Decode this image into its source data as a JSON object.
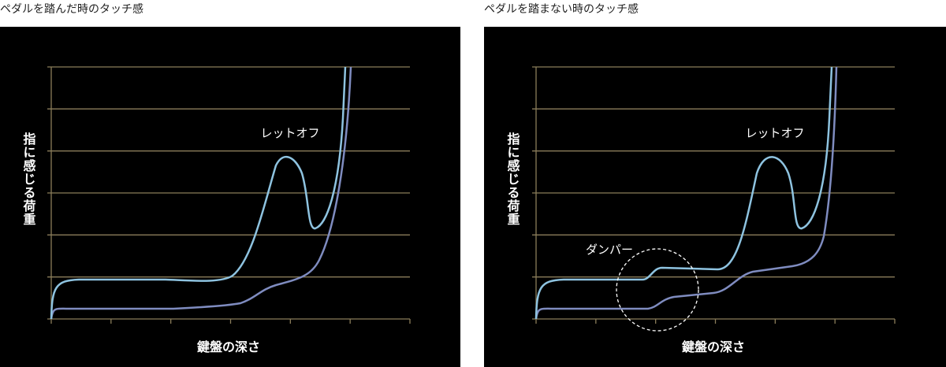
{
  "left": {
    "title": "ペダルを踏んだ時のタッチ感",
    "y_label": "指に感じる荷重",
    "x_label": "鍵盤の深さ",
    "annotations": [
      "レットオフ"
    ]
  },
  "right": {
    "title": "ペダルを踏まない時のタッチ感",
    "y_label": "指に感じる荷重",
    "x_label": "鍵盤の深さ",
    "annotations": [
      "レットオフ",
      "ダンパー"
    ]
  }
}
